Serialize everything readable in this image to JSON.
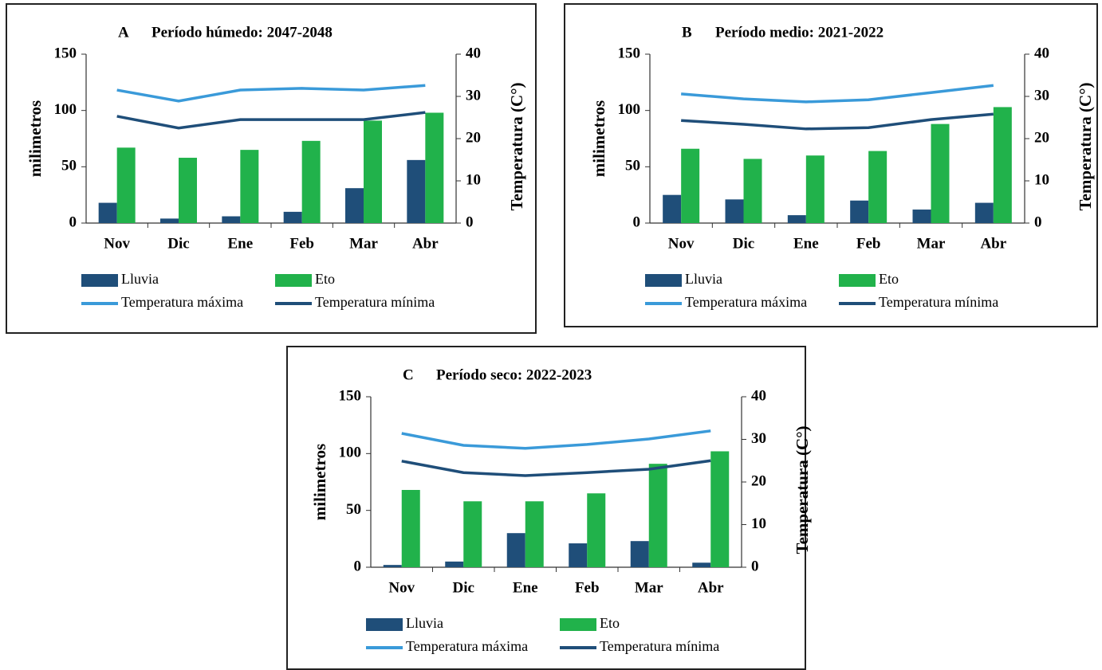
{
  "chart_data": [
    {
      "type": "combo",
      "label": "A",
      "title": "Período húmedo: 2047-2048",
      "y_label": "milimetros",
      "y2_label": "Temperatura (C°)",
      "categories": [
        "Nov",
        "Dic",
        "Ene",
        "Feb",
        "Mar",
        "Abr"
      ],
      "ylim": [
        0,
        150
      ],
      "yticks": [
        0,
        50,
        100,
        150
      ],
      "y2lim": [
        0,
        40
      ],
      "y2ticks": [
        0,
        10,
        20,
        30,
        40
      ],
      "series": [
        {
          "name": "Lluvia",
          "type": "bar",
          "color": "#1f4e79",
          "values": [
            18,
            4,
            6,
            10,
            31,
            56
          ]
        },
        {
          "name": "Eto",
          "type": "bar",
          "color": "#21b24b",
          "values": [
            67,
            58,
            65,
            73,
            91,
            98
          ]
        },
        {
          "name": "Temperatura máxima",
          "type": "line",
          "axis": "y2",
          "color": "#3a9ad9",
          "values": [
            31.5,
            28.9,
            31.5,
            31.9,
            31.5,
            32.6
          ]
        },
        {
          "name": "Temperatura mínima",
          "type": "line",
          "axis": "y2",
          "color": "#1f4e79",
          "values": [
            25.3,
            22.5,
            24.5,
            24.5,
            24.5,
            26.2
          ]
        }
      ]
    },
    {
      "type": "combo",
      "label": "B",
      "title": "Período medio: 2021-2022",
      "y_label": "milimetros",
      "y2_label": "Temperatura (C°)",
      "categories": [
        "Nov",
        "Dic",
        "Ene",
        "Feb",
        "Mar",
        "Abr"
      ],
      "ylim": [
        0,
        150
      ],
      "yticks": [
        0,
        50,
        100,
        150
      ],
      "y2lim": [
        0,
        40
      ],
      "y2ticks": [
        0,
        10,
        20,
        30,
        40
      ],
      "series": [
        {
          "name": "Lluvia",
          "type": "bar",
          "color": "#1f4e79",
          "values": [
            25,
            21,
            7,
            20,
            12,
            18
          ]
        },
        {
          "name": "Eto",
          "type": "bar",
          "color": "#21b24b",
          "values": [
            66,
            57,
            60,
            64,
            88,
            103
          ]
        },
        {
          "name": "Temperatura máxima",
          "type": "line",
          "axis": "y2",
          "color": "#3a9ad9",
          "values": [
            30.6,
            29.4,
            28.7,
            29.2,
            30.9,
            32.6
          ]
        },
        {
          "name": "Temperatura mínima",
          "type": "line",
          "axis": "y2",
          "color": "#1f4e79",
          "values": [
            24.3,
            23.4,
            22.3,
            22.6,
            24.5,
            25.8
          ]
        }
      ]
    },
    {
      "type": "combo",
      "label": "C",
      "title": "Período seco: 2022-2023",
      "y_label": "milimetros",
      "y2_label": "Temperatura (C°)",
      "categories": [
        "Nov",
        "Dic",
        "Ene",
        "Feb",
        "Mar",
        "Abr"
      ],
      "ylim": [
        0,
        150
      ],
      "yticks": [
        0,
        50,
        100,
        150
      ],
      "y2lim": [
        0,
        40
      ],
      "y2ticks": [
        0,
        10,
        20,
        30,
        40
      ],
      "series": [
        {
          "name": "Lluvia",
          "type": "bar",
          "color": "#1f4e79",
          "values": [
            2,
            5,
            30,
            21,
            23,
            4
          ]
        },
        {
          "name": "Eto",
          "type": "bar",
          "color": "#21b24b",
          "values": [
            68,
            58,
            58,
            65,
            91,
            102
          ]
        },
        {
          "name": "Temperatura máxima",
          "type": "line",
          "axis": "y2",
          "color": "#3a9ad9",
          "values": [
            31.4,
            28.6,
            27.9,
            28.8,
            30.1,
            32
          ]
        },
        {
          "name": "Temperatura mínima",
          "type": "line",
          "axis": "y2",
          "color": "#1f4e79",
          "values": [
            24.9,
            22.2,
            21.5,
            22.2,
            23,
            25
          ]
        }
      ]
    }
  ]
}
